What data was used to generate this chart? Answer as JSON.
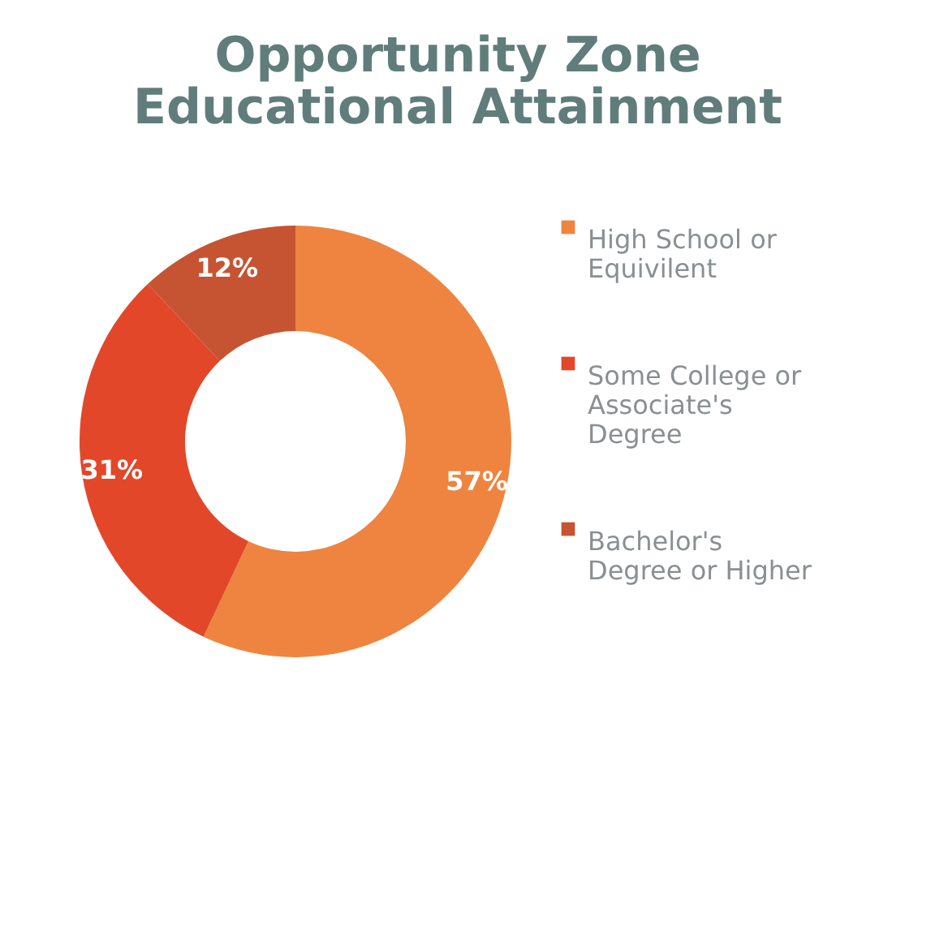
{
  "chart_data": {
    "type": "donut",
    "title": "Opportunity Zone Educational Attainment",
    "categories": [
      "High School or Equivilent",
      "Some College or Associate's Degree",
      "Bachelor's Degree or Higher"
    ],
    "values": [
      57,
      31,
      12
    ],
    "colors": [
      "#ee8440",
      "#e2472a",
      "#c65432"
    ],
    "value_labels": [
      "57%",
      "31%",
      "12%"
    ],
    "legend": "right"
  }
}
